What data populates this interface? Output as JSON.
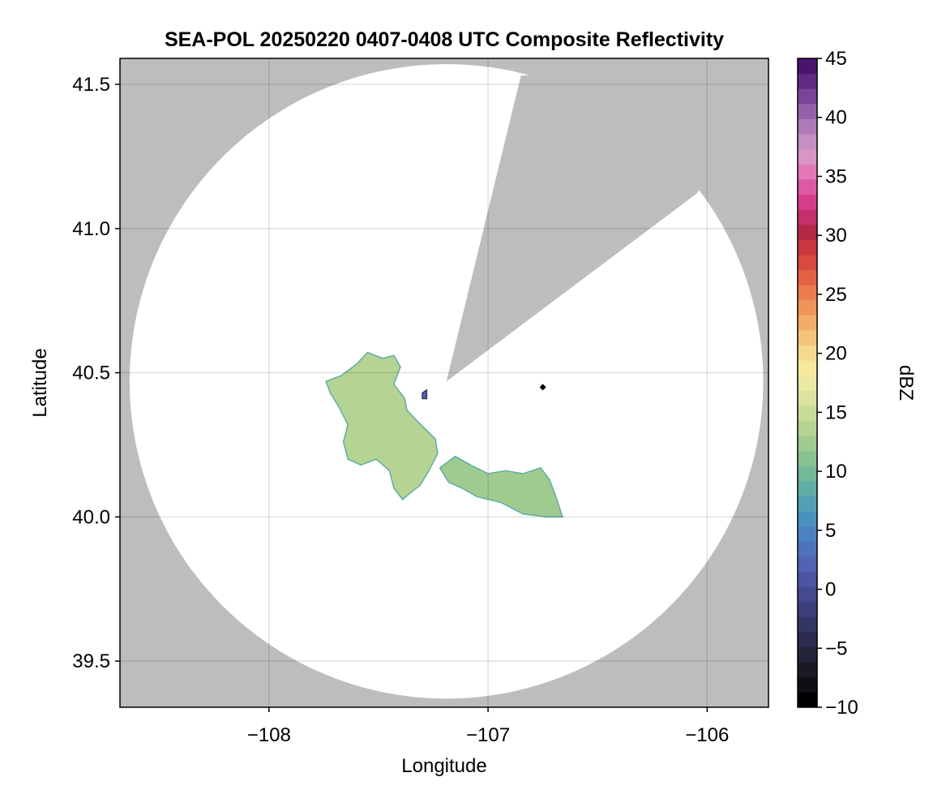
{
  "chart_data": {
    "type": "heatmap",
    "title": "SEA-POL 20250220 0407-0408 UTC Composite Reflectivity",
    "xlabel": "Longitude",
    "ylabel": "Latitude",
    "xlim": [
      -108.68,
      -105.72
    ],
    "ylim": [
      39.34,
      41.59
    ],
    "grid": true,
    "x_ticks": [
      -108,
      -107,
      -106
    ],
    "x_tick_labels": [
      "−108",
      "−107",
      "−106"
    ],
    "y_ticks": [
      39.5,
      40.0,
      40.5,
      41.0,
      41.5
    ],
    "y_tick_labels": [
      "39.5",
      "40.0",
      "40.5",
      "41.0",
      "41.5"
    ],
    "radar_coverage": {
      "center_lon": -107.19,
      "center_lat": 40.47,
      "radius_deg_lat": 1.1,
      "blocked_sector_1": [
        [
          -107.19,
          40.47
        ],
        [
          -106.85,
          41.53
        ],
        [
          -105.5,
          41.6
        ],
        [
          -106.05,
          41.12
        ]
      ],
      "radar_site_marker": [
        -106.75,
        40.45
      ],
      "background_color": "#bdbdbd",
      "coverage_color": "#ffffff"
    },
    "echo_regions": [
      {
        "name": "west-echo",
        "polygon": [
          [
            -107.74,
            40.47
          ],
          [
            -107.67,
            40.49
          ],
          [
            -107.6,
            40.53
          ],
          [
            -107.55,
            40.57
          ],
          [
            -107.48,
            40.55
          ],
          [
            -107.43,
            40.56
          ],
          [
            -107.4,
            40.52
          ],
          [
            -107.43,
            40.46
          ],
          [
            -107.38,
            40.41
          ],
          [
            -107.37,
            40.37
          ],
          [
            -107.32,
            40.33
          ],
          [
            -107.28,
            40.3
          ],
          [
            -107.24,
            40.27
          ],
          [
            -107.23,
            40.22
          ],
          [
            -107.27,
            40.16
          ],
          [
            -107.31,
            40.11
          ],
          [
            -107.36,
            40.08
          ],
          [
            -107.39,
            40.06
          ],
          [
            -107.43,
            40.1
          ],
          [
            -107.45,
            40.16
          ],
          [
            -107.51,
            40.2
          ],
          [
            -107.58,
            40.18
          ],
          [
            -107.64,
            40.2
          ],
          [
            -107.66,
            40.26
          ],
          [
            -107.64,
            40.32
          ],
          [
            -107.68,
            40.38
          ],
          [
            -107.72,
            40.43
          ]
        ],
        "value": 14
      },
      {
        "name": "east-echo",
        "polygon": [
          [
            -107.22,
            40.17
          ],
          [
            -107.15,
            40.21
          ],
          [
            -107.08,
            40.18
          ],
          [
            -107.0,
            40.15
          ],
          [
            -106.92,
            40.16
          ],
          [
            -106.84,
            40.15
          ],
          [
            -106.76,
            40.17
          ],
          [
            -106.72,
            40.13
          ],
          [
            -106.69,
            40.07
          ],
          [
            -106.66,
            40.0
          ],
          [
            -106.73,
            40.0
          ],
          [
            -106.84,
            40.01
          ],
          [
            -106.94,
            40.05
          ],
          [
            -107.05,
            40.07
          ],
          [
            -107.12,
            40.1
          ],
          [
            -107.18,
            40.12
          ]
        ],
        "value": 13
      },
      {
        "name": "small-echo",
        "polygon": [
          [
            -107.3,
            40.43
          ],
          [
            -107.28,
            40.44
          ],
          [
            -107.28,
            40.41
          ],
          [
            -107.3,
            40.41
          ]
        ],
        "value": 2
      }
    ],
    "colorbar": {
      "label": "dBZ",
      "min": -10,
      "max": 45,
      "ticks": [
        -10,
        -5,
        0,
        5,
        10,
        15,
        20,
        25,
        30,
        35,
        40,
        45
      ],
      "tick_labels": [
        "−10",
        "−5",
        "0",
        "5",
        "10",
        "15",
        "20",
        "25",
        "30",
        "35",
        "40",
        "45"
      ],
      "colors": [
        "#000000",
        "#0e0e14",
        "#1a1a26",
        "#23233a",
        "#2c2c4f",
        "#353564",
        "#3d3f7a",
        "#45498e",
        "#4d55a2",
        "#5163b2",
        "#4f72bd",
        "#4a82c1",
        "#4a92bd",
        "#52a0b5",
        "#60ada6",
        "#73b899",
        "#89c292",
        "#9fcb8f",
        "#b5d392",
        "#c9db98",
        "#dbe39f",
        "#ebe9a4",
        "#f5e9a0",
        "#f6d98f",
        "#f4c47c",
        "#f2ad6a",
        "#ef955a",
        "#ea7c4d",
        "#e26244",
        "#d8493f",
        "#c83840",
        "#b52845",
        "#c62f6c",
        "#d53d8a",
        "#de58a2",
        "#e478b7",
        "#d995c6",
        "#c48fc3",
        "#ad7ab7",
        "#9460a8",
        "#7a4596",
        "#612a82",
        "#4a136d"
      ]
    }
  }
}
